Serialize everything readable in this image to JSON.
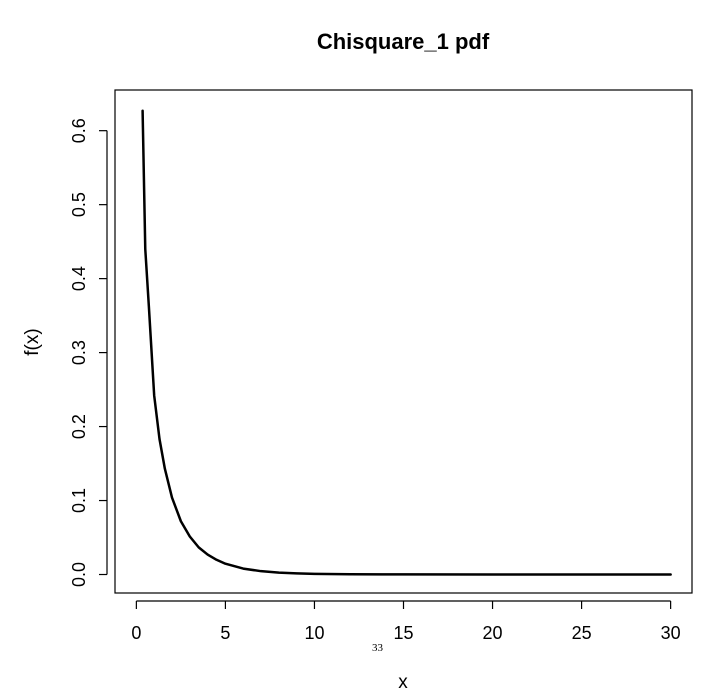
{
  "chart_data": {
    "type": "line",
    "title": "Chisquare_1 pdf",
    "xlabel": "x",
    "ylabel": "f(x)",
    "xlim": [
      -1.2,
      31.2
    ],
    "ylim": [
      -0.025,
      0.655
    ],
    "xticks": [
      0,
      5,
      10,
      15,
      20,
      25,
      30
    ],
    "yticks": [
      0.0,
      0.1,
      0.2,
      0.3,
      0.4,
      0.5,
      0.6
    ],
    "xtick_labels": [
      "0",
      "5",
      "10",
      "15",
      "20",
      "25",
      "30"
    ],
    "ytick_labels": [
      "0.0",
      "0.1",
      "0.2",
      "0.3",
      "0.4",
      "0.5",
      "0.6"
    ],
    "series": [
      {
        "color": "#000000",
        "x": [
          0.35,
          0.5,
          0.7,
          1.0,
          1.3,
          1.6,
          2.0,
          2.5,
          3.0,
          3.5,
          4.0,
          4.5,
          5.0,
          6.0,
          7.0,
          8.0,
          9.0,
          10.0,
          12.0,
          15.0,
          20.0,
          25.0,
          30.0
        ],
        "y": [
          0.627,
          0.44,
          0.363,
          0.242,
          0.183,
          0.143,
          0.104,
          0.072,
          0.0514,
          0.0367,
          0.027,
          0.0199,
          0.0146,
          0.008,
          0.0045,
          0.0025,
          0.0015,
          0.0009,
          0.0003,
          0.0001,
          0.0,
          0.0,
          0.0
        ]
      }
    ],
    "grid": false,
    "legend": "none"
  },
  "footer": {
    "page_number": "33"
  }
}
